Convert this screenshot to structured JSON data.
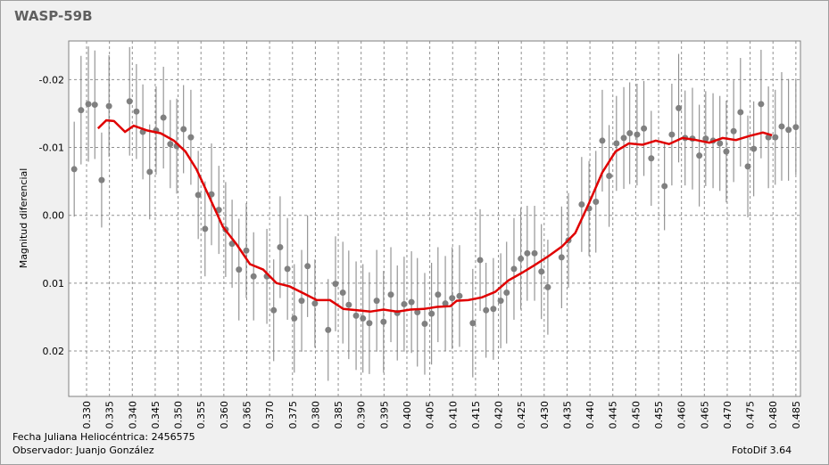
{
  "chart_data": {
    "type": "scatter",
    "title": "WASP-59B",
    "y_label": "Magnitud diferencial",
    "xlim": [
      0.3261,
      0.486
    ],
    "ylim": [
      -0.0257,
      0.0267
    ],
    "y_inverted": true,
    "grid": true,
    "xticks": [
      {
        "value": 0.33,
        "label": "0.330"
      },
      {
        "value": 0.335,
        "label": "0.335"
      },
      {
        "value": 0.34,
        "label": "0.340"
      },
      {
        "value": 0.345,
        "label": "0.345"
      },
      {
        "value": 0.35,
        "label": "0.350"
      },
      {
        "value": 0.355,
        "label": "0.355"
      },
      {
        "value": 0.36,
        "label": "0.360"
      },
      {
        "value": 0.365,
        "label": "0.365"
      },
      {
        "value": 0.37,
        "label": "0.370"
      },
      {
        "value": 0.375,
        "label": "0.375"
      },
      {
        "value": 0.38,
        "label": "0.380"
      },
      {
        "value": 0.385,
        "label": "0.385"
      },
      {
        "value": 0.39,
        "label": "0.390"
      },
      {
        "value": 0.395,
        "label": "0.395"
      },
      {
        "value": 0.4,
        "label": "0.400"
      },
      {
        "value": 0.405,
        "label": "0.405"
      },
      {
        "value": 0.41,
        "label": "0.410"
      },
      {
        "value": 0.415,
        "label": "0.415"
      },
      {
        "value": 0.42,
        "label": "0.420"
      },
      {
        "value": 0.425,
        "label": "0.425"
      },
      {
        "value": 0.43,
        "label": "0.430"
      },
      {
        "value": 0.435,
        "label": "0.435"
      },
      {
        "value": 0.44,
        "label": "0.440"
      },
      {
        "value": 0.445,
        "label": "0.445"
      },
      {
        "value": 0.45,
        "label": "0.450"
      },
      {
        "value": 0.455,
        "label": "0.455"
      },
      {
        "value": 0.46,
        "label": "0.460"
      },
      {
        "value": 0.465,
        "label": "0.465"
      },
      {
        "value": 0.47,
        "label": "0.470"
      },
      {
        "value": 0.475,
        "label": "0.475"
      },
      {
        "value": 0.48,
        "label": "0.480"
      },
      {
        "value": 0.485,
        "label": "0.485"
      }
    ],
    "yticks": [
      -0.02,
      -0.01,
      {
        "value": 0,
        "label": "0.00"
      },
      0.01,
      0.02
    ],
    "series": [
      {
        "type": "errorbar",
        "color": "#808080",
        "x": [
          0.3273,
          0.3288,
          0.3304,
          0.3318,
          0.3333,
          0.3349,
          0.3394,
          0.3409,
          0.3423,
          0.3438,
          0.3452,
          0.3468,
          0.3483,
          0.3497,
          0.3512,
          0.3528,
          0.3544,
          0.3559,
          0.3573,
          0.3589,
          0.3604,
          0.3618,
          0.3633,
          0.3649,
          0.3665,
          0.3694,
          0.3709,
          0.3723,
          0.3739,
          0.3754,
          0.377,
          0.3783,
          0.3799,
          0.3828,
          0.3844,
          0.386,
          0.3873,
          0.3889,
          0.3904,
          0.3918,
          0.3934,
          0.3949,
          0.3965,
          0.3979,
          0.3994,
          0.401,
          0.4023,
          0.4039,
          0.4054,
          0.4068,
          0.4084,
          0.4099,
          0.4115,
          0.4144,
          0.416,
          0.4173,
          0.4189,
          0.4205,
          0.4218,
          0.4234,
          0.4249,
          0.4263,
          0.4279,
          0.4294,
          0.4308,
          0.4338,
          0.4353,
          0.4382,
          0.4398,
          0.4413,
          0.4427,
          0.4442,
          0.4458,
          0.4474,
          0.4487,
          0.4503,
          0.4518,
          0.4534,
          0.4563,
          0.4579,
          0.4594,
          0.4608,
          0.4624,
          0.4639,
          0.4653,
          0.4669,
          0.4684,
          0.4698,
          0.4714,
          0.4729,
          0.4745,
          0.4758,
          0.4774,
          0.479,
          0.4805,
          0.4819,
          0.4834,
          0.485
        ],
        "values": [
          -0.0068,
          -0.0155,
          -0.0164,
          -0.0163,
          -0.0052,
          -0.0161,
          -0.0168,
          -0.0153,
          -0.0123,
          -0.0064,
          -0.0125,
          -0.0144,
          -0.0105,
          -0.0102,
          -0.0127,
          -0.0115,
          -0.003,
          0.002,
          -0.0031,
          -0.0008,
          0.0021,
          0.0042,
          0.008,
          0.0052,
          0.009,
          0.009,
          0.014,
          0.0047,
          0.0079,
          0.0152,
          0.0126,
          0.0075,
          0.013,
          0.0169,
          0.0101,
          0.0114,
          0.0132,
          0.0148,
          0.0152,
          0.0159,
          0.0126,
          0.0157,
          0.0117,
          0.0144,
          0.0131,
          0.0128,
          0.0143,
          0.016,
          0.0145,
          0.0117,
          0.013,
          0.0122,
          0.0119,
          0.0159,
          0.0066,
          0.014,
          0.0138,
          0.0126,
          0.0114,
          0.0079,
          0.0064,
          0.0056,
          0.0056,
          0.0083,
          0.0106,
          0.0062,
          0.0037,
          -0.0016,
          -0.001,
          -0.002,
          -0.011,
          -0.0058,
          -0.0106,
          -0.0114,
          -0.0121,
          -0.0119,
          -0.0128,
          -0.0084,
          -0.0043,
          -0.0119,
          -0.0158,
          -0.0114,
          -0.0113,
          -0.0088,
          -0.0113,
          -0.011,
          -0.0106,
          -0.0094,
          -0.0124,
          -0.0152,
          -0.0072,
          -0.0098,
          -0.0164,
          -0.0115,
          -0.0115,
          -0.0131,
          -0.0126,
          -0.013
        ],
        "errors": [
          0.007,
          0.008,
          0.0085,
          0.008,
          0.007,
          0.0075,
          0.008,
          0.007,
          0.007,
          0.007,
          0.0065,
          0.0075,
          0.0065,
          0.007,
          0.0065,
          0.007,
          0.0065,
          0.007,
          0.0075,
          0.0065,
          0.007,
          0.0065,
          0.0075,
          0.007,
          0.0065,
          0.007,
          0.0075,
          0.0075,
          0.0075,
          0.008,
          0.0075,
          0.0075,
          0.0065,
          0.0075,
          0.007,
          0.0075,
          0.008,
          0.008,
          0.008,
          0.0075,
          0.0075,
          0.0075,
          0.007,
          0.007,
          0.007,
          0.0075,
          0.008,
          0.0075,
          0.0075,
          0.007,
          0.007,
          0.0075,
          0.0075,
          0.008,
          0.0075,
          0.007,
          0.0075,
          0.007,
          0.0075,
          0.0075,
          0.0075,
          0.007,
          0.007,
          0.007,
          0.007,
          0.0075,
          0.007,
          0.007,
          0.007,
          0.0075,
          0.0075,
          0.0075,
          0.007,
          0.0075,
          0.0075,
          0.0075,
          0.007,
          0.007,
          0.0065,
          0.0075,
          0.008,
          0.007,
          0.0075,
          0.0075,
          0.007,
          0.007,
          0.007,
          0.0075,
          0.0075,
          0.008,
          0.0075,
          0.007,
          0.008,
          0.0075,
          0.007,
          0.008,
          0.0075,
          0.007
        ]
      },
      {
        "type": "line",
        "color": "#e00000",
        "x": [
          0.3325,
          0.3343,
          0.336,
          0.3384,
          0.3403,
          0.3433,
          0.3462,
          0.3491,
          0.3516,
          0.354,
          0.3569,
          0.3598,
          0.3628,
          0.3657,
          0.3686,
          0.3715,
          0.3744,
          0.3774,
          0.3803,
          0.3832,
          0.3861,
          0.3891,
          0.392,
          0.3949,
          0.3979,
          0.4008,
          0.4037,
          0.4066,
          0.4095,
          0.4109,
          0.4134,
          0.4164,
          0.4193,
          0.4222,
          0.4251,
          0.428,
          0.431,
          0.4339,
          0.4368,
          0.4398,
          0.4427,
          0.4456,
          0.4485,
          0.4515,
          0.4544,
          0.4573,
          0.4602,
          0.4632,
          0.4661,
          0.469,
          0.4719,
          0.4749,
          0.4778,
          0.4798
        ],
        "values": [
          -0.0128,
          -0.014,
          -0.0139,
          -0.0123,
          -0.0132,
          -0.0125,
          -0.0121,
          -0.011,
          -0.0094,
          -0.0068,
          -0.0026,
          0.0017,
          0.0043,
          0.0072,
          0.008,
          0.01,
          0.0105,
          0.0115,
          0.0125,
          0.0125,
          0.0138,
          0.014,
          0.0142,
          0.0139,
          0.0142,
          0.0139,
          0.0138,
          0.0135,
          0.0134,
          0.0126,
          0.0125,
          0.0121,
          0.0113,
          0.0096,
          0.0085,
          0.0073,
          0.006,
          0.0046,
          0.0026,
          -0.0018,
          -0.0063,
          -0.0094,
          -0.0106,
          -0.0104,
          -0.011,
          -0.0105,
          -0.0114,
          -0.0111,
          -0.0107,
          -0.0114,
          -0.0111,
          -0.0117,
          -0.0122,
          -0.0118
        ]
      }
    ]
  },
  "footer": {
    "date": "Fecha Juliana Heliocéntrica: 2456575",
    "observer": "Observador: Juanjo González",
    "software": "FotoDif 3.64"
  }
}
